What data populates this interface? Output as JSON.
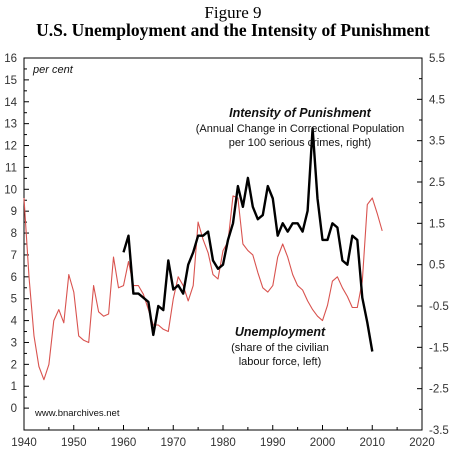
{
  "figure_label": "Figure 9",
  "title": "U.S. Unemployment and the Intensity of Punishment",
  "chart_data": {
    "type": "line",
    "left_axis": {
      "unit": "per cent",
      "ylim": [
        -1,
        16
      ],
      "ticks": [
        0,
        1,
        2,
        3,
        4,
        5,
        6,
        7,
        8,
        9,
        10,
        11,
        12,
        13,
        14,
        15,
        16
      ]
    },
    "right_axis": {
      "ylim": [
        -3.5,
        5.5
      ],
      "ticks": [
        "-3.5",
        "-2.5",
        "-1.5",
        "-0.5",
        "0.5",
        "1.5",
        "2.5",
        "3.5",
        "4.5",
        "5.5"
      ]
    },
    "x_axis": {
      "xlim": [
        1940,
        2020
      ],
      "ticks": [
        1940,
        1950,
        1960,
        1970,
        1980,
        1990,
        2000,
        2010,
        2020
      ]
    },
    "grid": false,
    "source_note": "www.bnarchives.net",
    "series": [
      {
        "name": "Unemployment",
        "annotation_lines": [
          "Unemployment",
          "(share of the civilian",
          "labour force, left)"
        ],
        "axis": "left",
        "color": "#d9534f",
        "x": [
          1940,
          1941,
          1942,
          1943,
          1944,
          1945,
          1946,
          1947,
          1948,
          1949,
          1950,
          1951,
          1952,
          1953,
          1954,
          1955,
          1956,
          1957,
          1958,
          1959,
          1960,
          1961,
          1962,
          1963,
          1964,
          1965,
          1966,
          1967,
          1968,
          1969,
          1970,
          1971,
          1972,
          1973,
          1974,
          1975,
          1976,
          1977,
          1978,
          1979,
          1980,
          1981,
          1982,
          1983,
          1984,
          1985,
          1986,
          1987,
          1988,
          1989,
          1990,
          1991,
          1992,
          1993,
          1994,
          1995,
          1996,
          1997,
          1998,
          1999,
          2000,
          2001,
          2002,
          2003,
          2004,
          2005,
          2006,
          2007,
          2008,
          2009,
          2010,
          2011,
          2012
        ],
        "values": [
          9.6,
          6.0,
          3.3,
          1.9,
          1.3,
          2.0,
          4.0,
          4.5,
          3.9,
          6.1,
          5.3,
          3.3,
          3.1,
          3.0,
          5.6,
          4.4,
          4.2,
          4.3,
          6.9,
          5.5,
          5.6,
          6.7,
          5.6,
          5.6,
          5.2,
          4.5,
          3.8,
          3.8,
          3.6,
          3.5,
          5.0,
          6.0,
          5.6,
          4.9,
          5.6,
          8.5,
          7.7,
          7.1,
          6.1,
          5.9,
          7.2,
          7.6,
          9.7,
          9.6,
          7.5,
          7.2,
          7.0,
          6.2,
          5.5,
          5.3,
          5.6,
          6.9,
          7.5,
          6.9,
          6.1,
          5.6,
          5.4,
          4.9,
          4.5,
          4.2,
          4.0,
          4.7,
          5.8,
          6.0,
          5.5,
          5.1,
          4.6,
          4.6,
          5.8,
          9.3,
          9.6,
          8.9,
          8.1
        ]
      },
      {
        "name": "Intensity of Punishment",
        "annotation_lines": [
          "Intensity of Punishment",
          "(Annual Change in Correctional Population",
          "per 100 serious crimes, right)"
        ],
        "axis": "right",
        "color": "#000000",
        "x": [
          1960,
          1961,
          1962,
          1963,
          1964,
          1965,
          1966,
          1967,
          1968,
          1969,
          1970,
          1971,
          1972,
          1973,
          1974,
          1975,
          1976,
          1977,
          1978,
          1979,
          1980,
          1981,
          1982,
          1983,
          1984,
          1985,
          1986,
          1987,
          1988,
          1989,
          1990,
          1991,
          1992,
          1993,
          1994,
          1995,
          1996,
          1997,
          1998,
          1999,
          2000,
          2001,
          2002,
          2003,
          2004,
          2005,
          2006,
          2007,
          2008,
          2009,
          2010
        ],
        "values": [
          0.8,
          1.2,
          -0.2,
          -0.2,
          -0.3,
          -0.4,
          -1.2,
          -0.5,
          -0.6,
          0.6,
          -0.1,
          0.0,
          -0.2,
          0.5,
          0.8,
          1.2,
          1.2,
          1.3,
          0.6,
          0.4,
          0.5,
          1.1,
          1.5,
          2.4,
          1.9,
          2.6,
          1.9,
          1.6,
          1.7,
          2.4,
          2.1,
          1.2,
          1.5,
          1.3,
          1.5,
          1.5,
          1.3,
          1.8,
          3.8,
          2.1,
          1.1,
          1.1,
          1.5,
          1.4,
          0.6,
          0.5,
          1.2,
          1.1,
          -0.3,
          -0.9,
          -1.6
        ]
      }
    ]
  }
}
